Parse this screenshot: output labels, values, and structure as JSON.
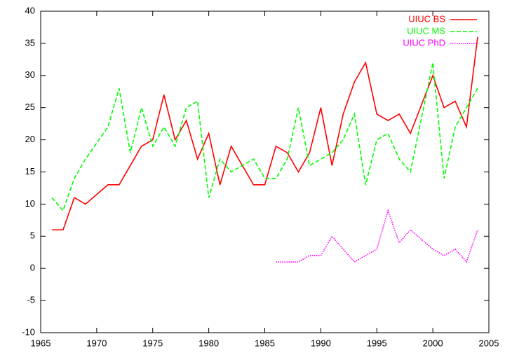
{
  "chart_data": {
    "type": "line",
    "x": [
      1966,
      1967,
      1968,
      1969,
      1970,
      1971,
      1972,
      1973,
      1974,
      1975,
      1976,
      1977,
      1978,
      1979,
      1980,
      1981,
      1982,
      1983,
      1984,
      1985,
      1986,
      1987,
      1988,
      1989,
      1990,
      1991,
      1992,
      1993,
      1994,
      1995,
      1996,
      1997,
      1998,
      1999,
      2000,
      2001,
      2002,
      2003,
      2004
    ],
    "series": [
      {
        "name": "UIUC BS",
        "color": "#ff0000",
        "dash": "solid",
        "values": [
          6,
          6,
          11,
          10,
          11.5,
          13,
          13,
          16,
          19,
          20,
          27,
          20,
          23,
          17,
          21,
          13,
          19,
          16,
          13,
          13,
          19,
          18,
          15,
          18,
          25,
          16,
          24,
          29,
          32,
          24,
          23,
          24,
          21,
          25.5,
          30,
          25,
          26,
          22,
          36
        ]
      },
      {
        "name": "UIUC MS",
        "color": "#00ff00",
        "dash": "dashed",
        "values": [
          11,
          9,
          14,
          17,
          19.5,
          22,
          28,
          18,
          25,
          19,
          22,
          19,
          25,
          26,
          11,
          17,
          15,
          16,
          17,
          14,
          14,
          17,
          25,
          16,
          17,
          18,
          20,
          24,
          13,
          20,
          21,
          17,
          15,
          23.5,
          32,
          14,
          22,
          25,
          28
        ]
      },
      {
        "name": "UIUC PhD",
        "color": "#ff00ff",
        "dash": "dotted",
        "values": [
          null,
          null,
          null,
          null,
          null,
          null,
          null,
          null,
          null,
          null,
          null,
          null,
          null,
          null,
          null,
          null,
          null,
          null,
          null,
          null,
          1,
          1,
          1,
          2,
          2,
          5,
          3,
          1,
          2,
          3,
          9,
          4,
          6,
          4.5,
          3,
          2,
          3,
          1,
          6
        ]
      }
    ],
    "xlim": [
      1965,
      2005
    ],
    "xticks": [
      1965,
      1970,
      1975,
      1980,
      1985,
      1990,
      1995,
      2000,
      2005
    ],
    "ylim": [
      -10,
      40
    ],
    "yticks": [
      -10,
      -5,
      0,
      5,
      10,
      15,
      20,
      25,
      30,
      35,
      40
    ],
    "grid": false,
    "legend": "top-right"
  }
}
